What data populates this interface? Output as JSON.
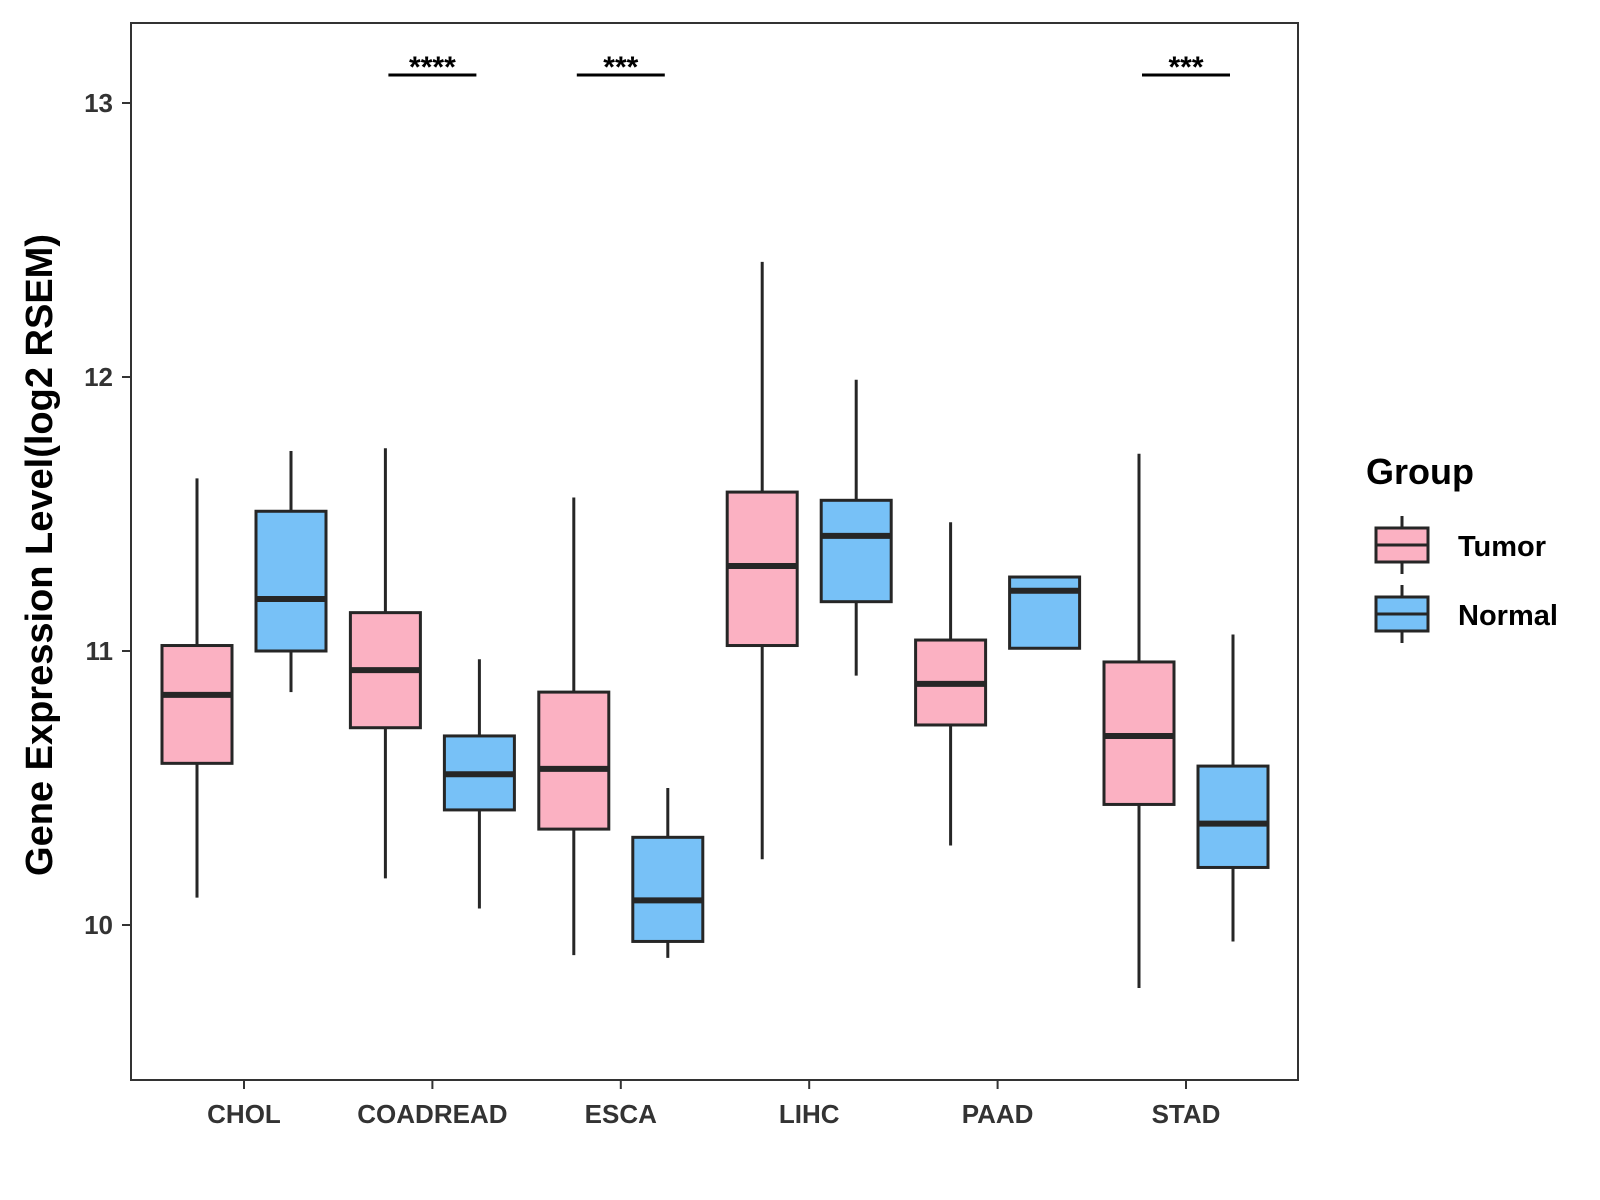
{
  "chart_data": {
    "type": "boxplot",
    "title": "",
    "xlabel": "",
    "ylabel": "Gene Expression Level(log2 RSEM)",
    "ylim": [
      9.45,
      13.3
    ],
    "yticks": [
      10,
      11,
      12,
      13
    ],
    "ytick_labels": [
      "10",
      "11",
      "12",
      "13"
    ],
    "categories": [
      "CHOL",
      "COADREAD",
      "ESCA",
      "LIHC",
      "PAAD",
      "STAD"
    ],
    "legend": {
      "title": "Group",
      "position": "right",
      "entries": [
        "Tumor",
        "Normal"
      ]
    },
    "colors": {
      "Tumor": "#FBB1C2",
      "Normal": "#77C1F7",
      "outline": "#262626",
      "panel_border": "#333333"
    },
    "series": [
      {
        "name": "Tumor",
        "boxes": [
          {
            "category": "CHOL",
            "whisker_low": 10.1,
            "q1": 10.59,
            "median": 10.84,
            "q3": 11.02,
            "whisker_high": 11.63
          },
          {
            "category": "COADREAD",
            "whisker_low": 10.17,
            "q1": 10.72,
            "median": 10.93,
            "q3": 11.14,
            "whisker_high": 11.74
          },
          {
            "category": "ESCA",
            "whisker_low": 9.89,
            "q1": 10.35,
            "median": 10.57,
            "q3": 10.85,
            "whisker_high": 11.56
          },
          {
            "category": "LIHC",
            "whisker_low": 10.24,
            "q1": 11.02,
            "median": 11.31,
            "q3": 11.58,
            "whisker_high": 12.42
          },
          {
            "category": "PAAD",
            "whisker_low": 10.29,
            "q1": 10.73,
            "median": 10.88,
            "q3": 11.04,
            "whisker_high": 11.47
          },
          {
            "category": "STAD",
            "whisker_low": 9.77,
            "q1": 10.44,
            "median": 10.69,
            "q3": 10.96,
            "whisker_high": 11.72
          }
        ]
      },
      {
        "name": "Normal",
        "boxes": [
          {
            "category": "CHOL",
            "whisker_low": 10.85,
            "q1": 11.0,
            "median": 11.19,
            "q3": 11.51,
            "whisker_high": 11.73
          },
          {
            "category": "COADREAD",
            "whisker_low": 10.06,
            "q1": 10.42,
            "median": 10.55,
            "q3": 10.69,
            "whisker_high": 10.97
          },
          {
            "category": "ESCA",
            "whisker_low": 9.88,
            "q1": 9.94,
            "median": 10.09,
            "q3": 10.32,
            "whisker_high": 10.5
          },
          {
            "category": "LIHC",
            "whisker_low": 10.91,
            "q1": 11.18,
            "median": 11.42,
            "q3": 11.55,
            "whisker_high": 11.99
          },
          {
            "category": "PAAD",
            "whisker_low": 11.01,
            "q1": 11.01,
            "median": 11.22,
            "q3": 11.27,
            "whisker_high": 11.27
          },
          {
            "category": "STAD",
            "whisker_low": 9.94,
            "q1": 10.21,
            "median": 10.37,
            "q3": 10.58,
            "whisker_high": 11.06
          }
        ]
      }
    ],
    "annotations": [
      {
        "category": "COADREAD",
        "text": "****"
      },
      {
        "category": "ESCA",
        "text": "***"
      },
      {
        "category": "STAD",
        "text": "***"
      }
    ]
  }
}
